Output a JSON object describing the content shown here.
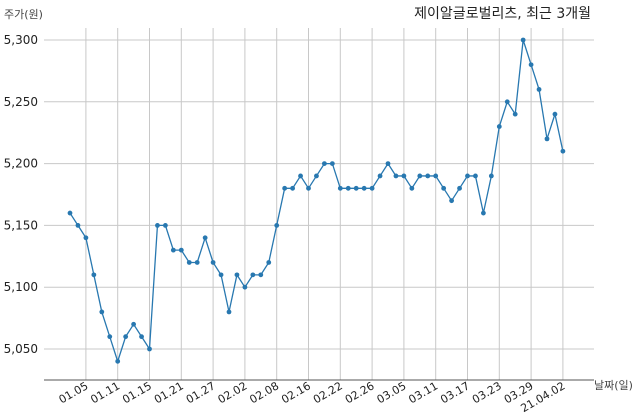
{
  "chart_data": {
    "type": "line",
    "title": "제이알글로벌리츠, 최근 3개월",
    "ylabel": "주가(원)",
    "xlabel": "날짜(일)",
    "ylim": [
      5020,
      5315
    ],
    "yticks": [
      5050,
      5100,
      5150,
      5200,
      5250,
      5300
    ],
    "ytick_labels": [
      "5,050",
      "5,100",
      "5,150",
      "5,200",
      "5,250",
      "5,300"
    ],
    "xtick_labels": [
      "01.05",
      "01.11",
      "01.15",
      "01.21",
      "01.27",
      "02.02",
      "02.08",
      "02.16",
      "02.22",
      "02.26",
      "03.05",
      "03.11",
      "03.17",
      "03.23",
      "03.29",
      "21.04.02"
    ],
    "xtick_index": [
      2,
      6,
      10,
      14,
      18,
      22,
      26,
      30,
      34,
      38,
      42,
      46,
      50,
      54,
      58,
      62
    ],
    "grid": true,
    "color": "#2878b0",
    "series": [
      {
        "values": [
          5160,
          5150,
          5140,
          5110,
          5080,
          5060,
          5040,
          5060,
          5070,
          5060,
          5050,
          5150,
          5150,
          5130,
          5130,
          5120,
          5120,
          5140,
          5120,
          5110,
          5080,
          5110,
          5100,
          5110,
          5110,
          5120,
          5150,
          5180,
          5180,
          5190,
          5180,
          5190,
          5200,
          5200,
          5180,
          5180,
          5180,
          5180,
          5180,
          5190,
          5200,
          5190,
          5190,
          5180,
          5190,
          5190,
          5190,
          5180,
          5170,
          5180,
          5190,
          5190,
          5160,
          5190,
          5230,
          5250,
          5240,
          5300,
          5280,
          5260,
          5220,
          5240,
          5210
        ]
      }
    ]
  }
}
